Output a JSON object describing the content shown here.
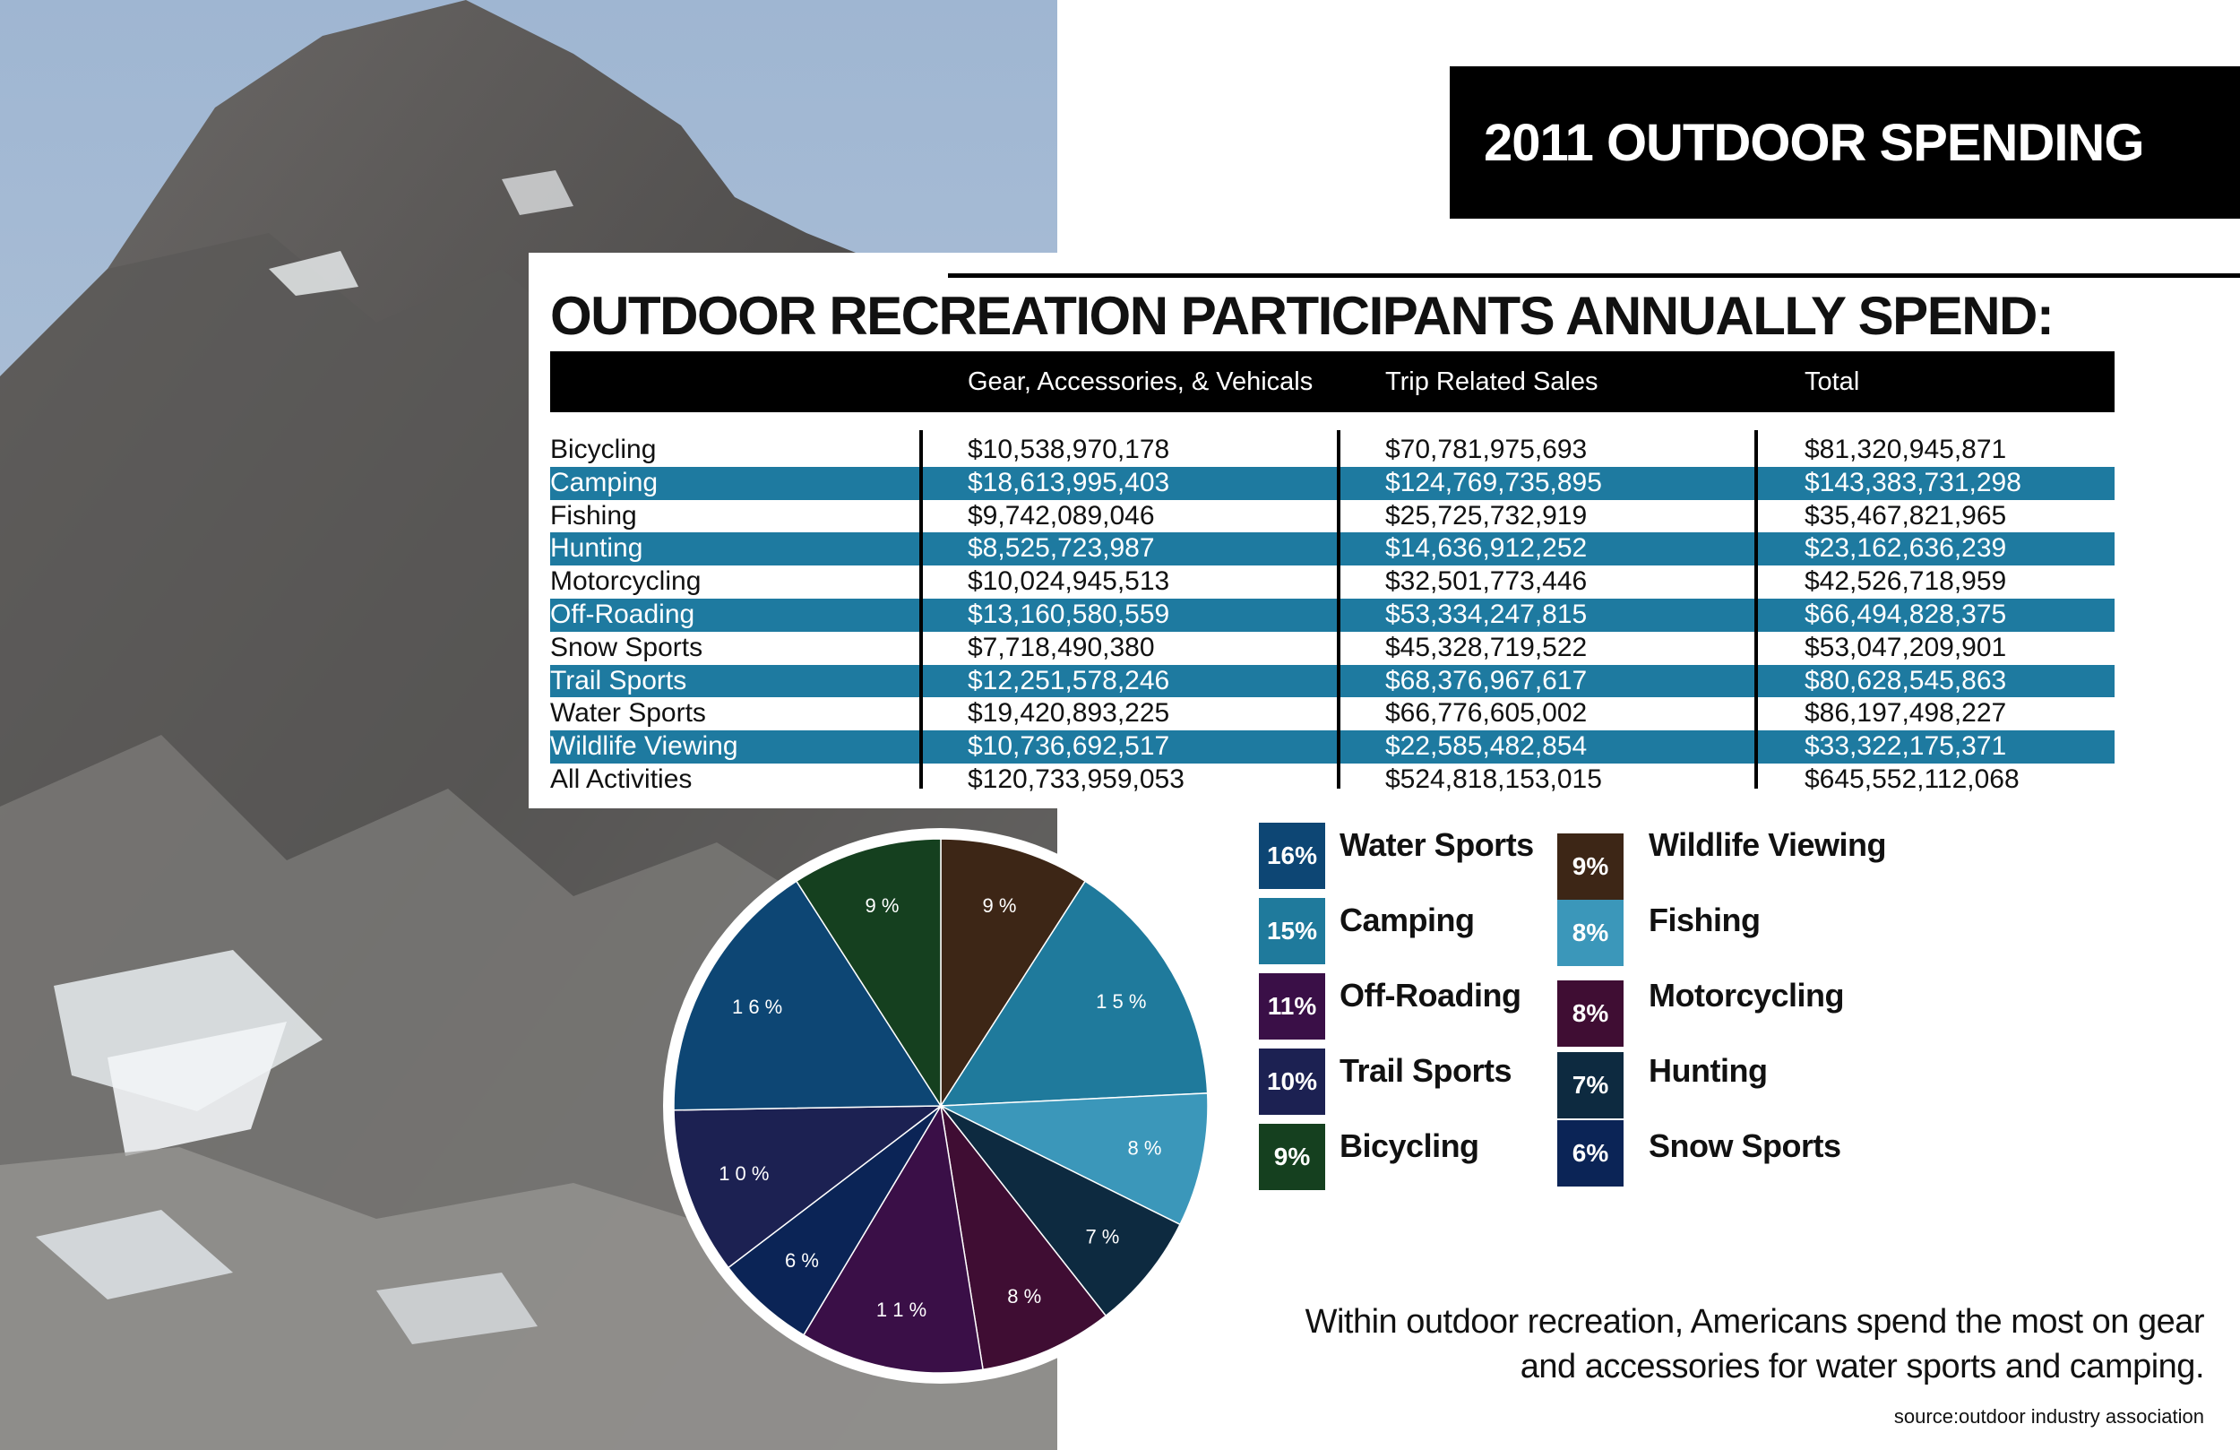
{
  "title": "2011 OUTDOOR SPENDING",
  "headline": "OUTDOOR RECREATION PARTICIPANTS ANNUALLY SPEND:",
  "table": {
    "headers": [
      "",
      "Gear, Accessories, & Vehicals",
      "Trip Related Sales",
      "Total"
    ],
    "rows": [
      [
        "Bicycling",
        "$10,538,970,178",
        "$70,781,975,693",
        "$81,320,945,871"
      ],
      [
        "Camping",
        "$18,613,995,403",
        "$124,769,735,895",
        "$143,383,731,298"
      ],
      [
        "Fishing",
        "$9,742,089,046",
        "$25,725,732,919",
        "$35,467,821,965"
      ],
      [
        "Hunting",
        "$8,525,723,987",
        "$14,636,912,252",
        "$23,162,636,239"
      ],
      [
        "Motorcycling",
        "$10,024,945,513",
        "$32,501,773,446",
        "$42,526,718,959"
      ],
      [
        "Off-Roading",
        "$13,160,580,559",
        "$53,334,247,815",
        "$66,494,828,375"
      ],
      [
        "Snow Sports",
        "$7,718,490,380",
        "$45,328,719,522",
        "$53,047,209,901"
      ],
      [
        "Trail Sports",
        "$12,251,578,246",
        "$68,376,967,617",
        "$80,628,545,863"
      ],
      [
        "Water Sports",
        "$19,420,893,225",
        "$66,776,605,002",
        "$86,197,498,227"
      ],
      [
        "Wildlife Viewing",
        "$10,736,692,517",
        "$22,585,482,854",
        "$33,322,175,371"
      ],
      [
        "All Activities",
        "$120,733,959,053",
        "$524,818,153,015",
        "$645,552,112,068"
      ]
    ]
  },
  "chart_data": {
    "type": "pie",
    "slices": [
      {
        "name": "Wildlife Viewing",
        "value": 9,
        "label": "9 %",
        "color": "#3d2616"
      },
      {
        "name": "Camping",
        "value": 15,
        "label": "1 5 %",
        "color": "#1f7a9c"
      },
      {
        "name": "Fishing",
        "value": 8,
        "label": "8 %",
        "color": "#3b97ba"
      },
      {
        "name": "Hunting",
        "value": 7,
        "label": "7 %",
        "color": "#0d2a40"
      },
      {
        "name": "Motorcycling",
        "value": 8,
        "label": "8 %",
        "color": "#3f0d33"
      },
      {
        "name": "Off-Roading",
        "value": 11,
        "label": "1 1 %",
        "color": "#3a0f47"
      },
      {
        "name": "Snow Sports",
        "value": 6,
        "label": "6 %",
        "color": "#0b2456"
      },
      {
        "name": "Trail Sports",
        "value": 10,
        "label": "1 0 %",
        "color": "#1c2152"
      },
      {
        "name": "Water Sports",
        "value": 16,
        "label": "1 6 %",
        "color": "#0d4674"
      },
      {
        "name": "Bicycling",
        "value": 9,
        "label": "9 %",
        "color": "#15401f"
      }
    ]
  },
  "legend": [
    {
      "pct": "16%",
      "label": "Water Sports",
      "color": "#0d4674"
    },
    {
      "pct": "15%",
      "label": "Camping",
      "color": "#1f7a9c"
    },
    {
      "pct": "11%",
      "label": "Off-Roading",
      "color": "#3a0f47"
    },
    {
      "pct": "10%",
      "label": "Trail Sports",
      "color": "#1c2152"
    },
    {
      "pct": "9%",
      "label": "Bicycling",
      "color": "#15401f"
    },
    {
      "pct": "9%",
      "label": "Wildlife Viewing",
      "color": "#3d2616"
    },
    {
      "pct": "8%",
      "label": "Fishing",
      "color": "#3b97ba"
    },
    {
      "pct": "8%",
      "label": "Motorcycling",
      "color": "#3f0d33"
    },
    {
      "pct": "7%",
      "label": "Hunting",
      "color": "#0d2a40"
    },
    {
      "pct": "6%",
      "label": "Snow Sports",
      "color": "#0b2456"
    }
  ],
  "note_line1": "Within outdoor recreation, Americans spend the most on gear",
  "note_line2": "and accessories for water sports and camping.",
  "source": "source:outdoor industry association"
}
